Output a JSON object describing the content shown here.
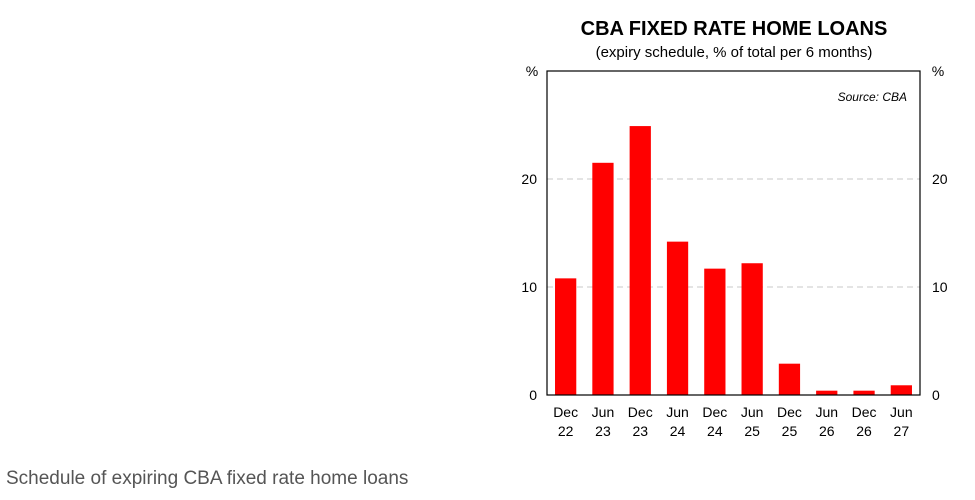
{
  "chart_data": {
    "type": "bar",
    "title": "CBA FIXED RATE HOME LOANS",
    "subtitle": "(expiry schedule, % of total per 6 months)",
    "ylabel_left": "%",
    "ylabel_right": "%",
    "source": "Source: CBA",
    "categories": [
      [
        "Dec",
        "22"
      ],
      [
        "Jun",
        "23"
      ],
      [
        "Dec",
        "23"
      ],
      [
        "Jun",
        "24"
      ],
      [
        "Dec",
        "24"
      ],
      [
        "Jun",
        "25"
      ],
      [
        "Dec",
        "25"
      ],
      [
        "Jun",
        "26"
      ],
      [
        "Dec",
        "26"
      ],
      [
        "Jun",
        "27"
      ]
    ],
    "values": [
      10.8,
      21.5,
      24.9,
      14.2,
      11.7,
      12.2,
      2.9,
      0.4,
      0.4,
      0.9
    ],
    "ylim": [
      0,
      30
    ],
    "yticks": [
      0,
      10,
      20
    ],
    "grid": true,
    "bar_color": "#ff0000",
    "grid_color": "#c8c8c8"
  },
  "caption": "Schedule of expiring CBA fixed rate home loans"
}
